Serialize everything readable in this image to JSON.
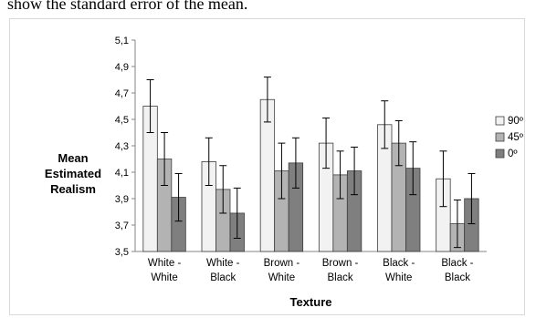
{
  "caption": "show the standard error of the mean.",
  "chart_data": {
    "type": "bar",
    "categories": [
      [
        "White -",
        "White"
      ],
      [
        "White -",
        "Black"
      ],
      [
        "Brown -",
        "White"
      ],
      [
        "Brown -",
        "Black"
      ],
      [
        "Black -",
        "White"
      ],
      [
        "Black -",
        "Black"
      ]
    ],
    "series": [
      {
        "name": "90º",
        "color": "#f2f2f2",
        "values": [
          4.6,
          4.18,
          4.65,
          4.32,
          4.46,
          4.05
        ],
        "errors": [
          0.2,
          0.18,
          0.17,
          0.19,
          0.18,
          0.21
        ]
      },
      {
        "name": "45º",
        "color": "#b3b3b3",
        "values": [
          4.2,
          3.97,
          4.11,
          4.08,
          4.32,
          3.71
        ],
        "errors": [
          0.2,
          0.18,
          0.21,
          0.18,
          0.17,
          0.18
        ]
      },
      {
        "name": "0º",
        "color": "#7f7f7f",
        "values": [
          3.91,
          3.79,
          4.17,
          4.11,
          4.13,
          3.9
        ],
        "errors": [
          0.18,
          0.19,
          0.19,
          0.18,
          0.2,
          0.19
        ]
      }
    ],
    "ylabel": [
      "Mean",
      "Estimated",
      "Realism"
    ],
    "xlabel": "Texture",
    "ylim": [
      3.5,
      5.1
    ],
    "yticks": [
      "3,5",
      "3,7",
      "3,9",
      "4,1",
      "4,3",
      "4,5",
      "4,7",
      "4,9",
      "5,1"
    ],
    "legend_position": "right",
    "grid": false
  }
}
